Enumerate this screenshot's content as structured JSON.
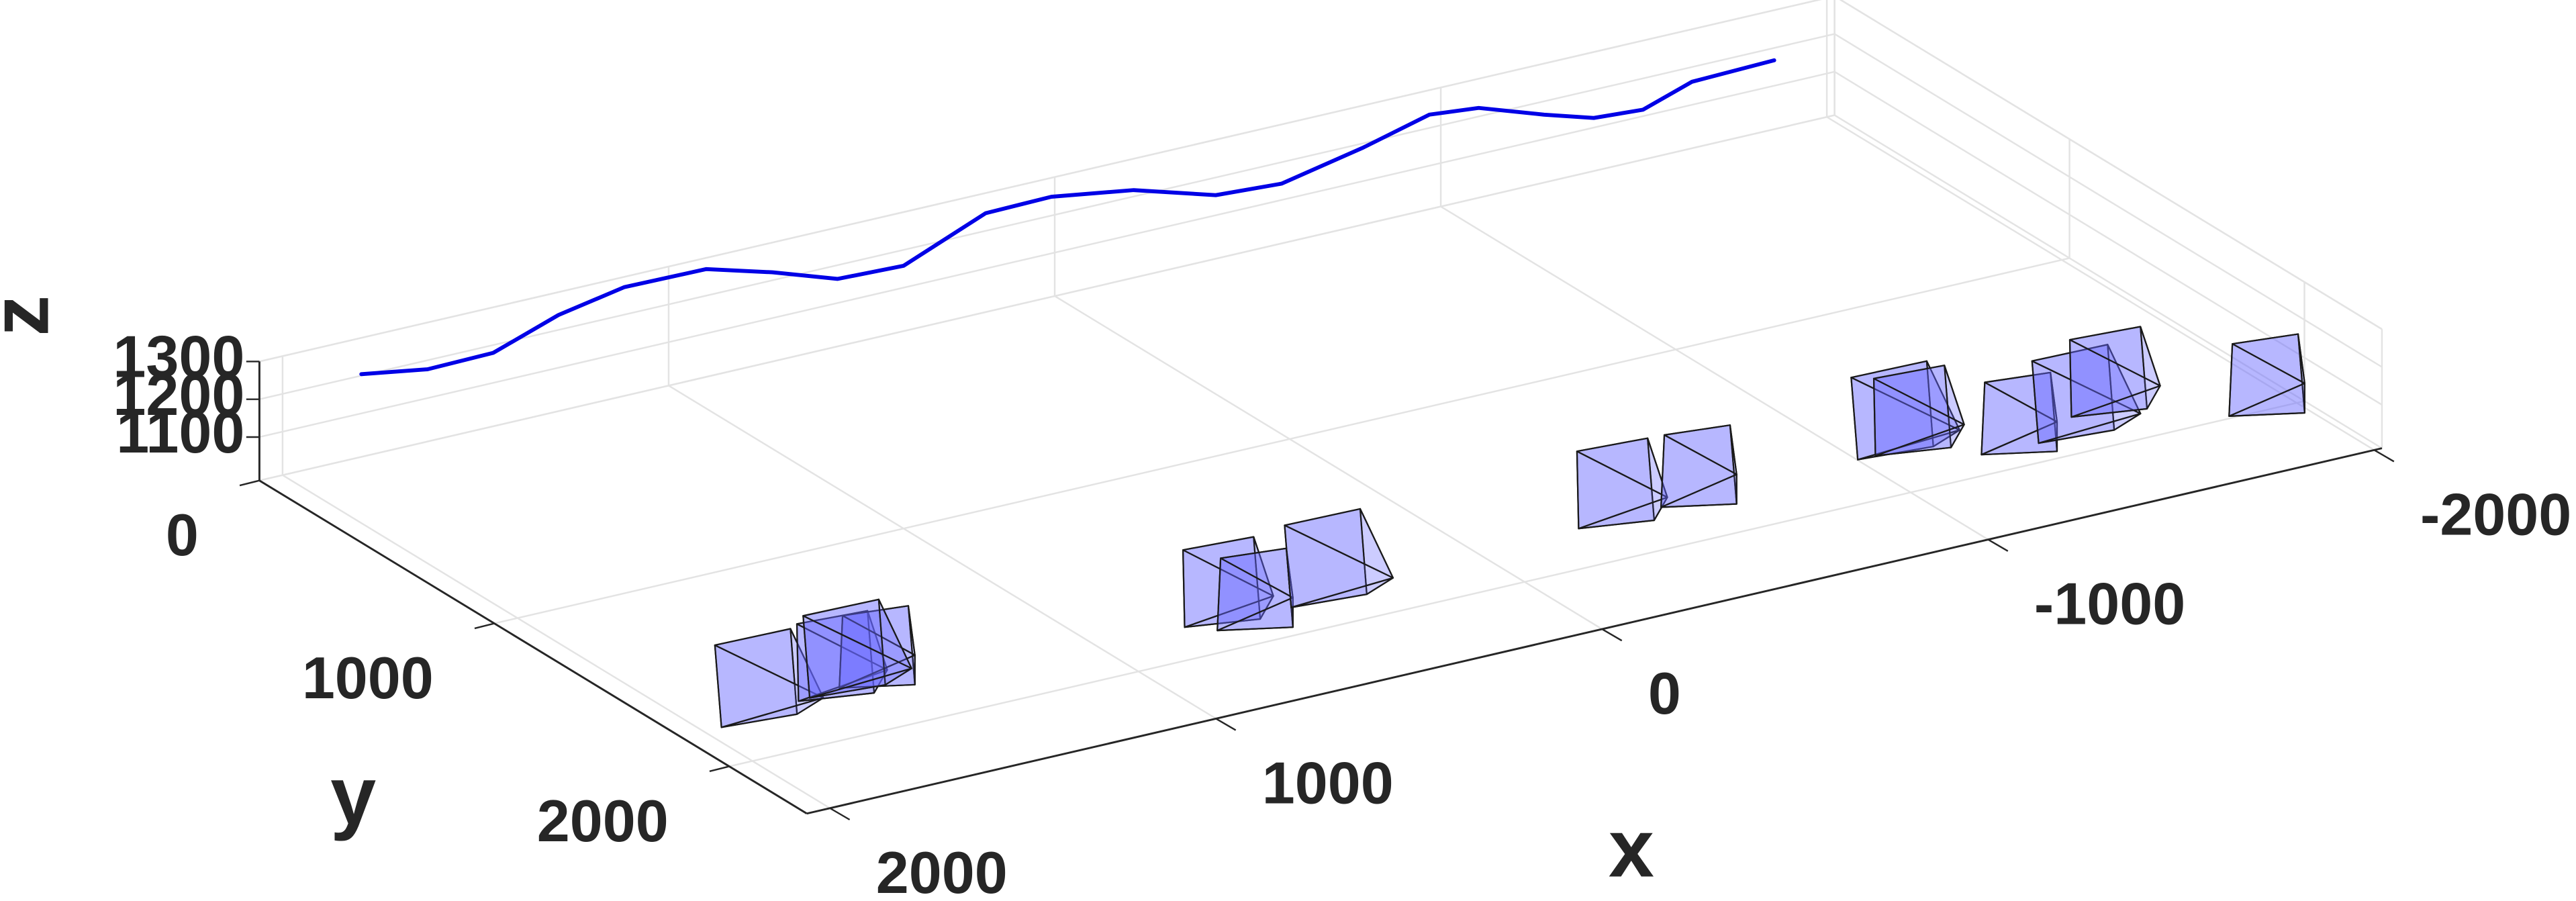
{
  "chart_data": {
    "type": "3d",
    "x_label": "x",
    "y_label": "y",
    "z_label": "z",
    "xlim": [
      -2020,
      2060
    ],
    "ylim": [
      0,
      2330
    ],
    "zlim": [
      985,
      1300
    ],
    "xticks": [
      -2000,
      -1000,
      0,
      1000,
      2000
    ],
    "yticks": [
      0,
      1000,
      2000
    ],
    "zticks": [
      1100,
      1200,
      1300
    ],
    "grid": true,
    "trajectory": {
      "color": "#0000e6",
      "x": [
        1908,
        1769,
        1595,
        1356,
        1146,
        937,
        823,
        721,
        557,
        241,
        67,
        -108,
        -246,
        -405,
        -670,
        -895,
        -1008,
        -1110,
        -1193,
        -1311,
        -1489,
        -1709
      ],
      "y": [
        184,
        237,
        231,
        116,
        52,
        57,
        151,
        261,
        272,
        102,
        96,
        159,
        281,
        300,
        213,
        124,
        148,
        259,
        334,
        350,
        266,
        254
      ],
      "z": [
        1300,
        1300,
        1300,
        1300,
        1300,
        1300,
        1300,
        1300,
        1300,
        1300,
        1300,
        1300,
        1300,
        1300,
        1300,
        1300,
        1300,
        1300,
        1300,
        1300,
        1300,
        1300
      ]
    },
    "cameras": {
      "color": "#6666ff",
      "x": [
        1756,
        1546,
        1444,
        1500,
        594,
        558,
        318,
        -449,
        -654,
        -1200,
        -1230,
        -1417,
        -1590,
        -1717,
        -2000
      ],
      "y": [
        1635,
        1618,
        1624,
        1590,
        1697,
        1777,
        1697,
        1660,
        1674,
        1614,
        1640,
        1784,
        1743,
        1674,
        1880
      ],
      "z": [
        1000,
        1000,
        1000,
        1000,
        1000,
        1000,
        1000,
        1000,
        1000,
        1000,
        1000,
        1000,
        1000,
        1000,
        1000
      ]
    }
  }
}
